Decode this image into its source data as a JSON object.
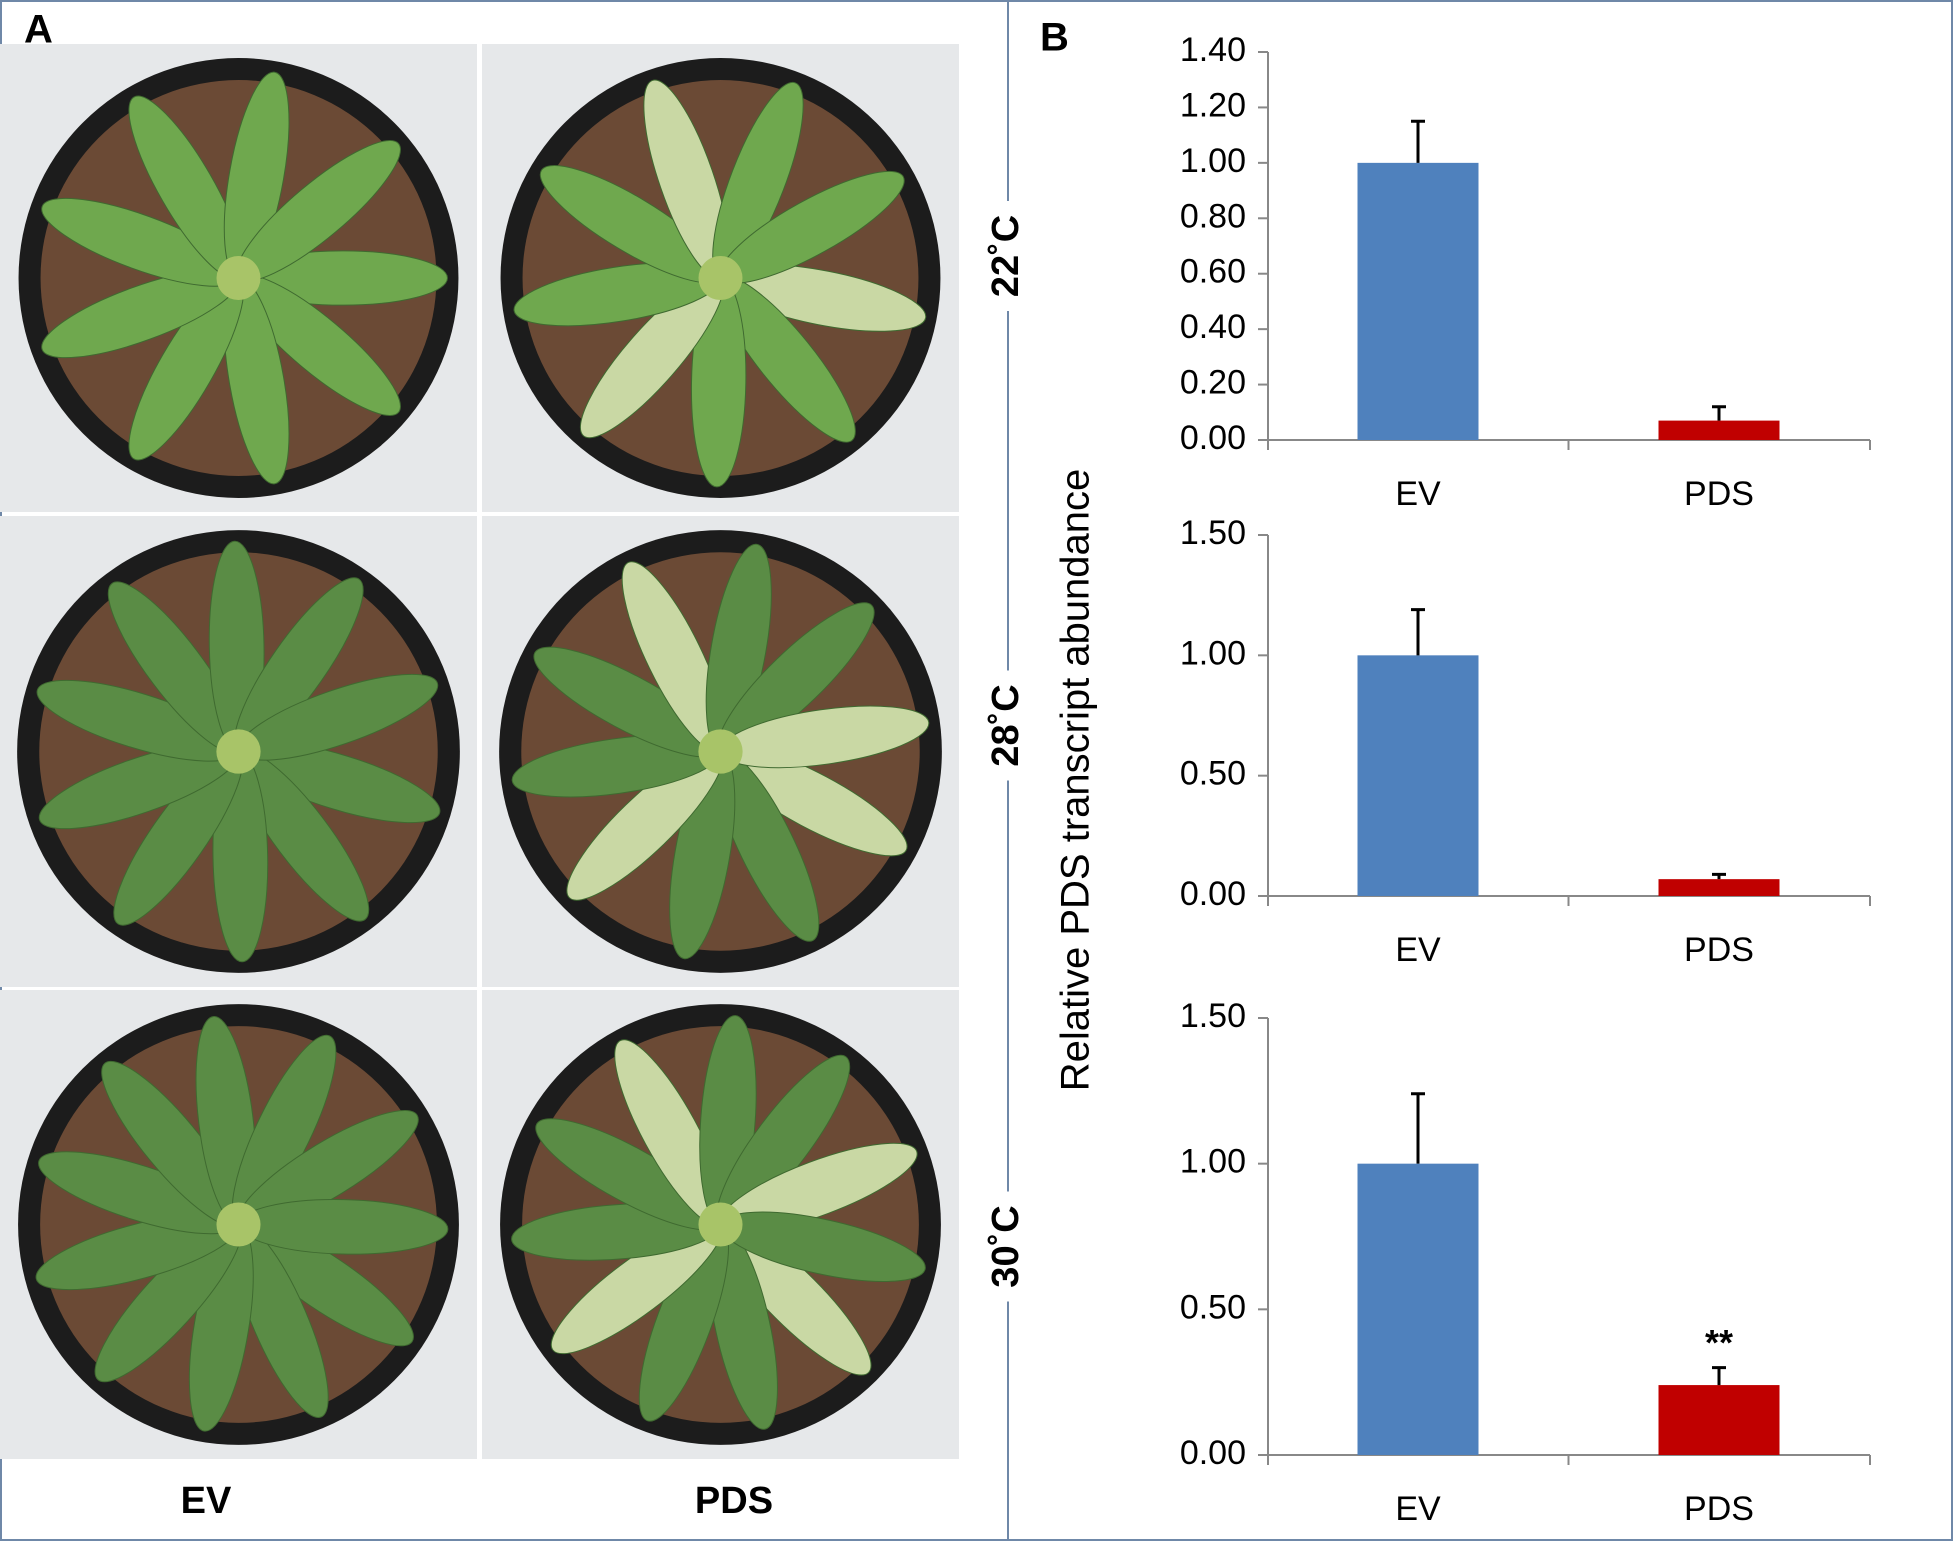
{
  "figure": {
    "panel_a": "A",
    "panel_b": "B",
    "ylabel": "Relative PDS transcript abundance",
    "photo_columns": [
      "EV",
      "PDS"
    ]
  },
  "chart_data": [
    {
      "type": "bar",
      "title": "22˚C",
      "categories": [
        "EV",
        "PDS"
      ],
      "values": [
        1.0,
        0.07
      ],
      "errors": [
        0.15,
        0.05
      ],
      "colors": [
        "#4f81bd",
        "#c00000"
      ],
      "ylim": [
        0,
        1.4
      ],
      "yticks": [
        {
          "value": 0,
          "label": "0.00"
        },
        {
          "value": 0.2,
          "label": "0.20"
        },
        {
          "value": 0.4,
          "label": "0.40"
        },
        {
          "value": 0.6,
          "label": "0.60"
        },
        {
          "value": 0.8,
          "label": "0.80"
        },
        {
          "value": 1.0,
          "label": "1.00"
        },
        {
          "value": 1.2,
          "label": "1.20"
        },
        {
          "value": 1.4,
          "label": "1.40"
        }
      ]
    },
    {
      "type": "bar",
      "title": "28˚C",
      "categories": [
        "EV",
        "PDS"
      ],
      "values": [
        1.0,
        0.07
      ],
      "errors": [
        0.19,
        0.02
      ],
      "colors": [
        "#4f81bd",
        "#c00000"
      ],
      "ylim": [
        0,
        1.5
      ],
      "yticks": [
        {
          "value": 0,
          "label": "0.00"
        },
        {
          "value": 0.5,
          "label": "0.50"
        },
        {
          "value": 1.0,
          "label": "1.00"
        },
        {
          "value": 1.5,
          "label": "1.50"
        }
      ]
    },
    {
      "type": "bar",
      "title": "30˚C",
      "categories": [
        "EV",
        "PDS"
      ],
      "values": [
        1.0,
        0.24
      ],
      "errors": [
        0.24,
        0.06
      ],
      "colors": [
        "#4f81bd",
        "#c00000"
      ],
      "annotation": "**",
      "ylim": [
        0,
        1.5
      ],
      "yticks": [
        {
          "value": 0,
          "label": "0.00"
        },
        {
          "value": 0.5,
          "label": "0.50"
        },
        {
          "value": 1.0,
          "label": "1.00"
        },
        {
          "value": 1.5,
          "label": "1.50"
        }
      ]
    }
  ]
}
